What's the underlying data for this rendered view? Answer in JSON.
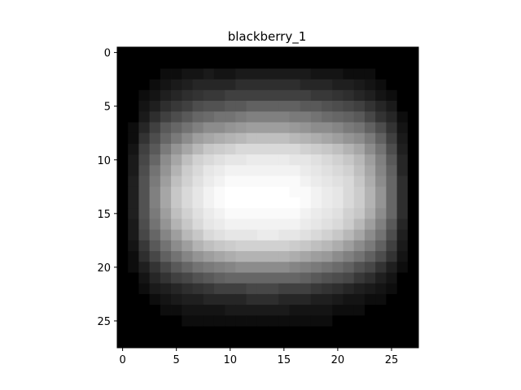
{
  "chart_data": {
    "type": "heatmap",
    "title": "blackberry_1",
    "xlabel": "",
    "ylabel": "",
    "colormap": "gray",
    "rows": 28,
    "cols": 28,
    "xlim": [
      -0.5,
      27.5
    ],
    "ylim": [
      27.5,
      -0.5
    ],
    "x_ticks": [
      0,
      5,
      10,
      15,
      20,
      25
    ],
    "y_ticks": [
      0,
      5,
      10,
      15,
      20,
      25
    ],
    "x_tick_labels": [
      "0",
      "5",
      "10",
      "15",
      "20",
      "25"
    ],
    "y_tick_labels": [
      "0",
      "5",
      "10",
      "15",
      "20",
      "25"
    ],
    "values": [
      [
        0,
        0,
        0,
        0,
        0,
        0,
        0,
        0,
        0,
        0,
        0,
        0,
        0,
        0,
        0,
        0,
        0,
        0,
        0,
        0,
        0,
        0,
        0,
        0,
        0,
        0,
        0,
        0
      ],
      [
        0,
        0,
        0,
        0,
        0,
        0,
        0,
        0,
        0,
        0,
        0,
        0,
        0,
        0,
        0,
        0,
        0,
        0,
        0,
        0,
        0,
        0,
        0,
        0,
        0,
        0,
        0,
        0
      ],
      [
        0,
        0,
        0,
        0,
        5,
        5,
        8,
        8,
        10,
        8,
        8,
        10,
        10,
        10,
        10,
        10,
        10,
        10,
        8,
        8,
        8,
        5,
        5,
        5,
        0,
        0,
        0,
        0
      ],
      [
        0,
        0,
        0,
        5,
        8,
        10,
        12,
        15,
        15,
        15,
        15,
        18,
        18,
        18,
        18,
        18,
        18,
        15,
        15,
        15,
        12,
        12,
        10,
        8,
        5,
        0,
        0,
        0
      ],
      [
        0,
        0,
        5,
        8,
        12,
        15,
        18,
        20,
        22,
        22,
        25,
        25,
        25,
        25,
        25,
        25,
        25,
        25,
        22,
        22,
        20,
        18,
        15,
        12,
        8,
        5,
        0,
        0
      ],
      [
        0,
        0,
        8,
        12,
        18,
        22,
        25,
        30,
        32,
        32,
        35,
        35,
        38,
        38,
        38,
        38,
        38,
        35,
        35,
        32,
        30,
        28,
        25,
        20,
        15,
        10,
        0,
        0
      ],
      [
        0,
        0,
        10,
        18,
        25,
        30,
        35,
        40,
        42,
        45,
        45,
        48,
        50,
        50,
        50,
        50,
        48,
        48,
        45,
        42,
        40,
        38,
        35,
        28,
        20,
        15,
        5,
        0
      ],
      [
        0,
        5,
        15,
        25,
        35,
        40,
        45,
        50,
        55,
        55,
        58,
        60,
        62,
        62,
        62,
        62,
        60,
        58,
        55,
        55,
        52,
        48,
        45,
        38,
        30,
        20,
        8,
        0
      ],
      [
        0,
        5,
        20,
        30,
        40,
        48,
        55,
        62,
        65,
        68,
        70,
        72,
        75,
        75,
        75,
        75,
        72,
        70,
        68,
        65,
        62,
        58,
        55,
        48,
        38,
        25,
        10,
        0
      ],
      [
        0,
        8,
        25,
        35,
        48,
        58,
        65,
        72,
        78,
        80,
        82,
        85,
        85,
        85,
        85,
        85,
        85,
        82,
        80,
        78,
        75,
        70,
        65,
        55,
        45,
        30,
        12,
        0
      ],
      [
        0,
        10,
        28,
        40,
        55,
        65,
        75,
        82,
        85,
        88,
        90,
        90,
        92,
        92,
        92,
        92,
        90,
        90,
        88,
        85,
        82,
        78,
        72,
        62,
        50,
        35,
        15,
        0
      ],
      [
        0,
        10,
        30,
        45,
        58,
        70,
        80,
        85,
        90,
        92,
        95,
        95,
        95,
        95,
        95,
        95,
        95,
        92,
        90,
        88,
        85,
        82,
        75,
        65,
        52,
        38,
        15,
        0
      ],
      [
        0,
        12,
        32,
        48,
        62,
        75,
        82,
        88,
        92,
        95,
        98,
        98,
        98,
        98,
        98,
        98,
        98,
        95,
        92,
        90,
        88,
        85,
        78,
        68,
        55,
        40,
        18,
        0
      ],
      [
        0,
        12,
        32,
        50,
        65,
        78,
        85,
        90,
        95,
        98,
        100,
        100,
        100,
        100,
        100,
        100,
        98,
        98,
        95,
        92,
        90,
        85,
        80,
        70,
        58,
        40,
        18,
        0
      ],
      [
        0,
        12,
        32,
        50,
        65,
        78,
        85,
        90,
        95,
        98,
        100,
        100,
        100,
        100,
        100,
        100,
        100,
        98,
        95,
        92,
        90,
        85,
        80,
        70,
        58,
        40,
        18,
        0
      ],
      [
        0,
        12,
        32,
        48,
        62,
        75,
        82,
        88,
        92,
        95,
        98,
        98,
        98,
        98,
        98,
        98,
        98,
        95,
        92,
        90,
        88,
        82,
        78,
        68,
        55,
        40,
        18,
        0
      ],
      [
        0,
        10,
        30,
        45,
        58,
        70,
        78,
        85,
        90,
        92,
        95,
        95,
        95,
        95,
        95,
        95,
        95,
        92,
        90,
        88,
        85,
        80,
        72,
        62,
        50,
        35,
        15,
        0
      ],
      [
        0,
        10,
        28,
        40,
        52,
        62,
        72,
        78,
        85,
        88,
        90,
        90,
        90,
        92,
        92,
        90,
        90,
        88,
        85,
        82,
        78,
        72,
        65,
        55,
        45,
        30,
        12,
        0
      ],
      [
        0,
        8,
        22,
        35,
        45,
        55,
        62,
        70,
        75,
        78,
        80,
        82,
        82,
        82,
        82,
        82,
        80,
        78,
        75,
        72,
        68,
        62,
        55,
        48,
        38,
        25,
        10,
        0
      ],
      [
        0,
        5,
        18,
        28,
        38,
        45,
        52,
        58,
        62,
        65,
        68,
        70,
        70,
        70,
        70,
        70,
        68,
        65,
        62,
        60,
        55,
        50,
        45,
        38,
        30,
        20,
        8,
        0
      ],
      [
        0,
        5,
        12,
        20,
        28,
        35,
        40,
        45,
        48,
        50,
        52,
        55,
        55,
        55,
        55,
        55,
        52,
        50,
        48,
        45,
        42,
        38,
        32,
        28,
        20,
        12,
        5,
        0
      ],
      [
        0,
        0,
        8,
        15,
        20,
        25,
        28,
        32,
        35,
        38,
        40,
        40,
        40,
        40,
        40,
        40,
        40,
        38,
        35,
        32,
        30,
        28,
        22,
        18,
        12,
        8,
        0,
        0
      ],
      [
        0,
        0,
        5,
        10,
        12,
        15,
        18,
        20,
        22,
        25,
        25,
        25,
        28,
        28,
        28,
        25,
        25,
        25,
        22,
        20,
        18,
        15,
        12,
        10,
        8,
        5,
        0,
        0
      ],
      [
        0,
        0,
        0,
        5,
        8,
        10,
        12,
        12,
        15,
        15,
        15,
        15,
        18,
        18,
        18,
        15,
        15,
        15,
        12,
        12,
        10,
        8,
        8,
        5,
        5,
        0,
        0,
        0
      ],
      [
        0,
        0,
        0,
        0,
        5,
        5,
        8,
        8,
        8,
        8,
        10,
        10,
        10,
        10,
        10,
        10,
        8,
        8,
        8,
        8,
        5,
        5,
        5,
        0,
        0,
        0,
        0,
        0
      ],
      [
        0,
        0,
        0,
        0,
        0,
        0,
        5,
        5,
        5,
        5,
        5,
        5,
        5,
        5,
        5,
        5,
        5,
        5,
        5,
        5,
        0,
        0,
        0,
        0,
        0,
        0,
        0,
        0
      ],
      [
        0,
        0,
        0,
        0,
        0,
        0,
        0,
        0,
        0,
        0,
        0,
        0,
        0,
        0,
        0,
        0,
        0,
        0,
        0,
        0,
        0,
        0,
        0,
        0,
        0,
        0,
        0,
        0
      ],
      [
        0,
        0,
        0,
        0,
        0,
        0,
        0,
        0,
        0,
        0,
        0,
        0,
        0,
        0,
        0,
        0,
        0,
        0,
        0,
        0,
        0,
        0,
        0,
        0,
        0,
        0,
        0,
        0
      ]
    ],
    "vmin": 0,
    "vmax": 100
  }
}
